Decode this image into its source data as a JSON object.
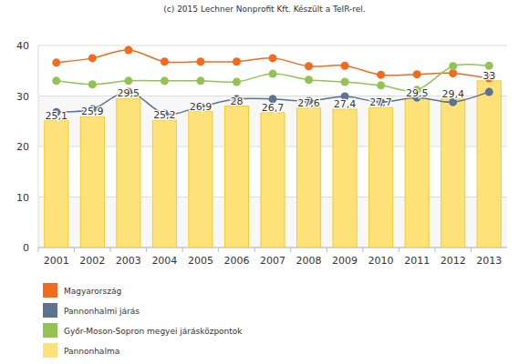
{
  "chart_data": {
    "type": "bar",
    "title": "(c) 2015 Lechner Nonprofit Kft. Készült a TeIR-rel.",
    "categories": [
      "2001",
      "2002",
      "2003",
      "2004",
      "2005",
      "2006",
      "2007",
      "2008",
      "2009",
      "2010",
      "2011",
      "2012",
      "2013"
    ],
    "series": [
      {
        "name": "Magyarország",
        "type": "line",
        "color": "#f26b1d",
        "marker": "circle",
        "values": [
          36.6,
          37.5,
          39.1,
          36.8,
          36.8,
          36.8,
          37.5,
          35.9,
          36.0,
          34.2,
          34.3,
          34.5,
          33.5
        ]
      },
      {
        "name": "Pannonhalmi járás",
        "type": "line",
        "color": "#5b7391",
        "marker": "circle",
        "values": [
          26.8,
          27.4,
          30.8,
          26.5,
          27.9,
          29.4,
          29.4,
          29.0,
          29.9,
          28.8,
          29.7,
          28.8,
          30.8
        ]
      },
      {
        "name": "Győr-Moson-Sopron megyei járásközpontok",
        "type": "line",
        "color": "#92c353",
        "marker": "circle",
        "values": [
          33.0,
          32.3,
          33.0,
          33.0,
          33.0,
          32.8,
          34.4,
          33.2,
          32.8,
          32.1,
          31.2,
          35.9,
          36.0
        ]
      },
      {
        "name": "Pannonhalma",
        "type": "bar",
        "color": "#fde27a",
        "values": [
          25.1,
          25.9,
          29.5,
          25.2,
          26.9,
          28,
          26.7,
          27.6,
          27.4,
          27.7,
          29.5,
          29.4,
          33
        ],
        "value_labels": [
          "25,1",
          "25,9",
          "29,5",
          "25,2",
          "26,9",
          "28",
          "26,7",
          "27,6",
          "27,4",
          "27,7",
          "29,5",
          "29,4",
          "33"
        ]
      }
    ],
    "ylim": [
      0,
      40
    ],
    "yticks": [
      0,
      10,
      20,
      30,
      40
    ],
    "grid": true,
    "legend": "bottom-left",
    "data_labels": true
  }
}
